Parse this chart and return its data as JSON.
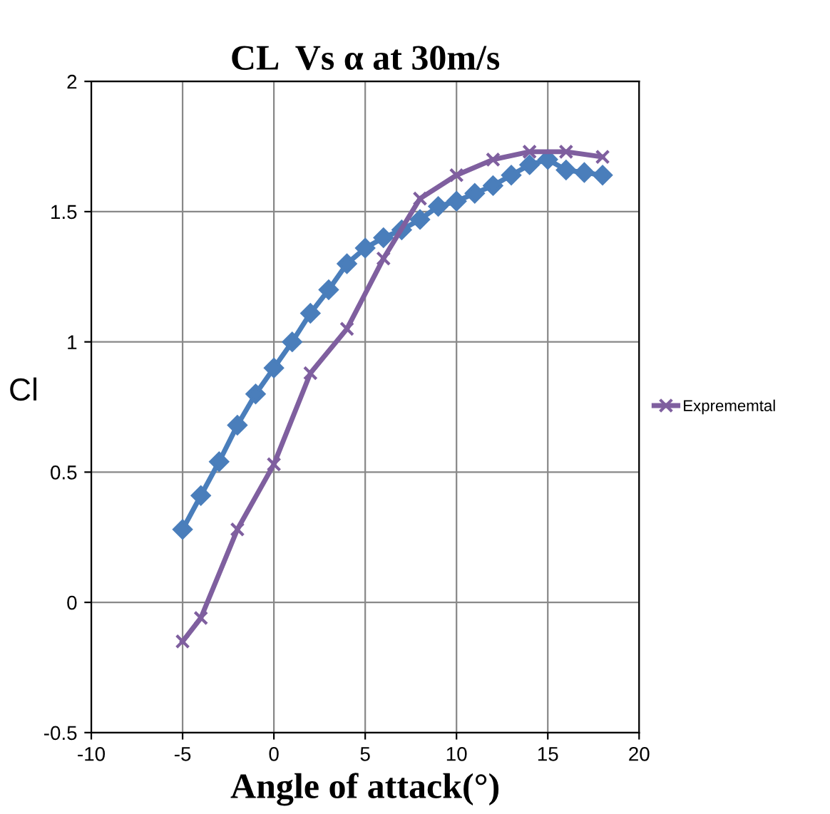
{
  "chart_data": {
    "type": "line",
    "title": "CL  Vs α at 30m/s",
    "xlabel": "Angle of attack(°)",
    "ylabel": "Cl",
    "xlim": [
      -10,
      20
    ],
    "xticks": [
      -10,
      -5,
      0,
      5,
      10,
      15,
      20
    ],
    "ylim": [
      -0.5,
      2
    ],
    "yticks": [
      -0.5,
      0,
      0.5,
      1,
      1.5,
      2
    ],
    "grid": true,
    "legend": "right",
    "series": [
      {
        "color": "#4a7ebb",
        "marker": "diamond",
        "x": [
          -5,
          -4,
          -3,
          -2,
          -1,
          0,
          1,
          2,
          3,
          4,
          5,
          6,
          7,
          8,
          9,
          10,
          11,
          12,
          13,
          14,
          15,
          16,
          17,
          18
        ],
        "values": [
          0.28,
          0.41,
          0.54,
          0.68,
          0.8,
          0.9,
          1.0,
          1.11,
          1.2,
          1.3,
          1.36,
          1.4,
          1.43,
          1.47,
          1.52,
          1.54,
          1.57,
          1.6,
          1.64,
          1.68,
          1.7,
          1.66,
          1.65,
          1.64
        ]
      },
      {
        "name": "Exprememtal",
        "color": "#7f5f9f",
        "marker": "cross",
        "x": [
          -5,
          -4,
          -2,
          0,
          2,
          4,
          6,
          8,
          10,
          12,
          14,
          16,
          18
        ],
        "values": [
          -0.15,
          -0.06,
          0.28,
          0.53,
          0.88,
          1.05,
          1.32,
          1.55,
          1.64,
          1.7,
          1.73,
          1.73,
          1.71
        ]
      }
    ]
  }
}
